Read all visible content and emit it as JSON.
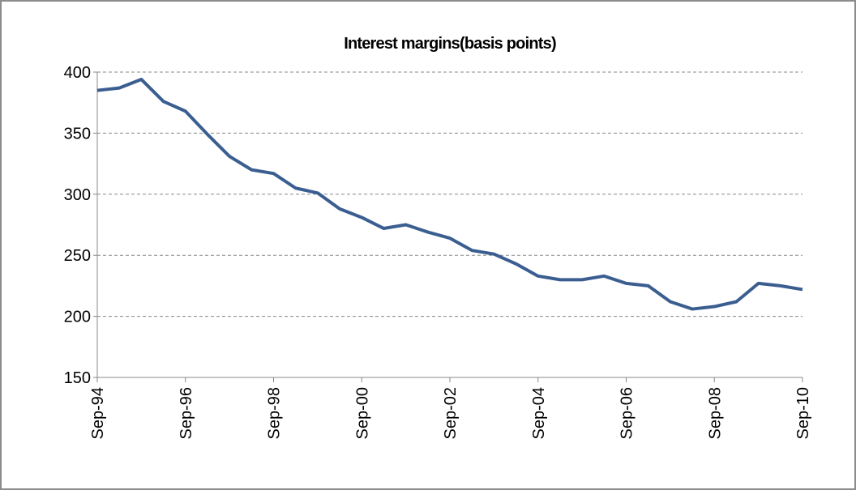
{
  "chart_data": {
    "type": "line",
    "title": "Interest margins(basis points)",
    "categories": [
      "Sep-94",
      null,
      null,
      null,
      "Sep-96",
      null,
      null,
      null,
      "Sep-98",
      null,
      null,
      null,
      "Sep-00",
      null,
      null,
      null,
      "Sep-02",
      null,
      null,
      null,
      "Sep-04",
      null,
      null,
      null,
      "Sep-06",
      null,
      null,
      null,
      "Sep-08",
      null,
      null,
      null,
      "Sep-10"
    ],
    "series": [
      {
        "name": "Interest margins",
        "color": "#3b5e91",
        "values": [
          385,
          387,
          394,
          376,
          368,
          349,
          331,
          320,
          317,
          305,
          301,
          288,
          281,
          272,
          275,
          269,
          264,
          254,
          251,
          243,
          233,
          230,
          230,
          233,
          227,
          225,
          212,
          206,
          208,
          212,
          227,
          225,
          222
        ]
      }
    ],
    "ylim": [
      150,
      400
    ],
    "yticks": [
      150,
      200,
      250,
      300,
      350,
      400
    ],
    "grid": true
  }
}
